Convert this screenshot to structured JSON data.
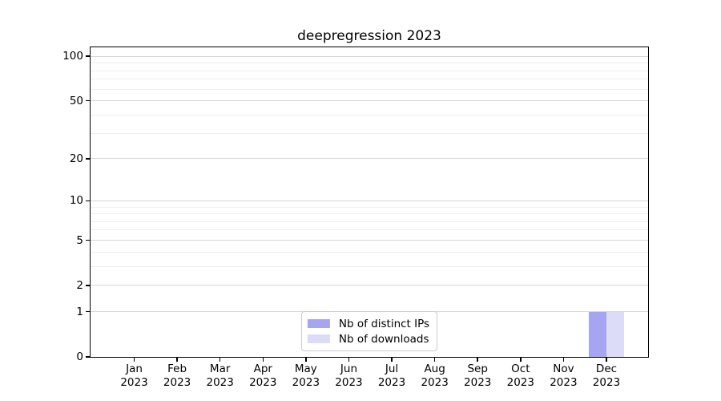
{
  "chart_data": {
    "type": "bar",
    "title": "deepregression 2023",
    "categories": [
      "Jan",
      "Feb",
      "Mar",
      "Apr",
      "May",
      "Jun",
      "Jul",
      "Aug",
      "Sep",
      "Oct",
      "Nov",
      "Dec"
    ],
    "category_year": "2023",
    "series": [
      {
        "name": "Nb of distinct IPs",
        "color": "#a5a5f2",
        "values": [
          0,
          0,
          0,
          0,
          0,
          0,
          0,
          0,
          0,
          0,
          0,
          1
        ]
      },
      {
        "name": "Nb of downloads",
        "color": "#dcdcf8",
        "values": [
          0,
          0,
          0,
          0,
          0,
          0,
          0,
          0,
          0,
          0,
          0,
          1
        ]
      }
    ],
    "y_axis": {
      "scale": "log1p",
      "major_ticks": [
        0,
        1,
        2,
        5,
        10,
        20,
        50,
        100
      ],
      "minor_gridlines": [
        3,
        4,
        6,
        7,
        8,
        9,
        30,
        40,
        60,
        70,
        80,
        90
      ],
      "max_value": 115
    },
    "x_axis": {
      "tick_label_year_row": true
    },
    "legend": {
      "position": "lower center"
    },
    "colors": {
      "grid_major": "#d6d6d6",
      "grid_minor": "#efefef",
      "axis": "#000000",
      "background": "#ffffff",
      "legend_border": "#cccccc"
    }
  }
}
